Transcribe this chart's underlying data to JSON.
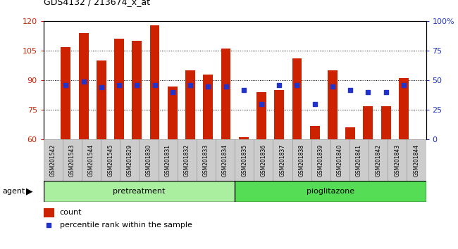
{
  "title": "GDS4132 / 213674_x_at",
  "samples": [
    "GSM201542",
    "GSM201543",
    "GSM201544",
    "GSM201545",
    "GSM201829",
    "GSM201830",
    "GSM201831",
    "GSM201832",
    "GSM201833",
    "GSM201834",
    "GSM201835",
    "GSM201836",
    "GSM201837",
    "GSM201838",
    "GSM201839",
    "GSM201840",
    "GSM201841",
    "GSM201842",
    "GSM201843",
    "GSM201844"
  ],
  "counts": [
    107,
    114,
    100,
    111,
    110,
    118,
    87,
    95,
    93,
    106,
    61,
    84,
    85,
    101,
    67,
    95,
    66,
    77,
    77,
    91
  ],
  "percentiles": [
    46,
    49,
    44,
    46,
    46,
    46,
    40,
    46,
    45,
    45,
    42,
    30,
    46,
    46,
    30,
    45,
    42,
    40,
    40,
    46
  ],
  "pretreatment_count": 10,
  "pioglitazone_count": 10,
  "ylim_left": [
    60,
    120
  ],
  "ylim_right": [
    0,
    100
  ],
  "yticks_left": [
    60,
    75,
    90,
    105,
    120
  ],
  "yticks_right": [
    0,
    25,
    50,
    75,
    100
  ],
  "bar_color": "#CC2200",
  "dot_color": "#2233CC",
  "pretreatment_color": "#AAEEA0",
  "pioglitazone_color": "#55DD55",
  "agent_label": "agent",
  "pretreatment_label": "pretreatment",
  "pioglitazone_label": "pioglitazone",
  "legend_count_label": "count",
  "legend_percentile_label": "percentile rank within the sample",
  "bar_width": 0.55,
  "tick_label_bg": "#CCCCCC",
  "fig_bg": "#FFFFFF"
}
